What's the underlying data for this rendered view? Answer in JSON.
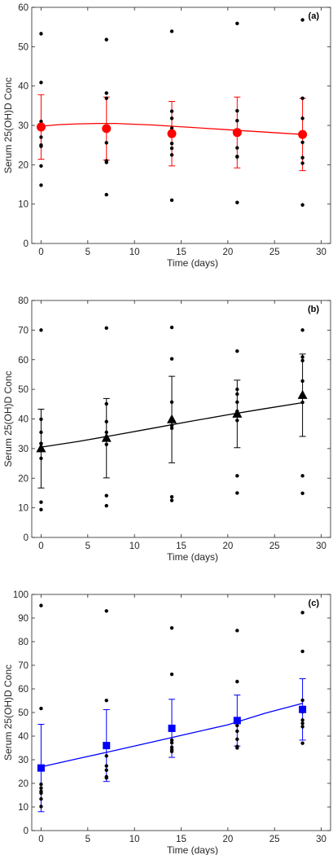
{
  "chart_data": [
    {
      "type": "scatter",
      "panel_label": "(a)",
      "xlabel": "Time (days)",
      "ylabel": "Serum 25(OH)D Conc",
      "xlim": [
        -1,
        31
      ],
      "ylim": [
        0,
        60
      ],
      "xticks": [
        0,
        5,
        10,
        15,
        20,
        25,
        30
      ],
      "yticks": [
        0,
        10,
        20,
        30,
        40,
        50,
        60
      ],
      "color": "#ff0000",
      "marker": "circle",
      "individual_points": {
        "x": [
          0,
          0,
          0,
          0,
          0,
          0,
          0,
          0,
          7,
          7,
          7,
          7,
          7,
          7,
          7,
          7,
          14,
          14,
          14,
          14,
          14,
          14,
          14,
          14,
          21,
          21,
          21,
          21,
          21,
          21,
          21,
          21,
          28,
          28,
          28,
          28,
          28,
          28,
          28,
          28
        ],
        "y": [
          53.3,
          40.9,
          31.0,
          27.0,
          25.0,
          24.7,
          19.7,
          14.8,
          51.8,
          38.2,
          36.9,
          29.5,
          25.6,
          21.0,
          20.6,
          12.4,
          53.9,
          33.6,
          31.8,
          29.3,
          25.4,
          24.2,
          22.5,
          11.0,
          55.9,
          33.7,
          31.2,
          27.9,
          24.3,
          22.1,
          22.0,
          10.4,
          56.8,
          36.9,
          31.8,
          27.4,
          25.7,
          21.8,
          20.4,
          9.8
        ]
      },
      "means": {
        "x": [
          0,
          7,
          14,
          21,
          28
        ],
        "y": [
          29.6,
          29.2,
          27.9,
          28.2,
          27.7
        ],
        "err": [
          8.2,
          8.0,
          8.2,
          9.0,
          9.2
        ]
      },
      "fit": {
        "x": [
          0,
          2,
          4,
          6,
          8,
          10,
          12,
          14,
          16,
          18,
          20,
          22,
          24,
          26,
          28
        ],
        "y": [
          29.8,
          30.2,
          30.4,
          30.5,
          30.5,
          30.3,
          30.1,
          29.8,
          29.5,
          29.2,
          28.9,
          28.6,
          28.3,
          28.0,
          27.7
        ]
      }
    },
    {
      "type": "scatter",
      "panel_label": "(b)",
      "xlabel": "Time (days)",
      "ylabel": "Serum 25(OH)D Conc",
      "xlim": [
        -1,
        31
      ],
      "ylim": [
        0,
        80
      ],
      "xticks": [
        0,
        5,
        10,
        15,
        20,
        25,
        30
      ],
      "yticks": [
        0,
        10,
        20,
        30,
        40,
        50,
        60,
        70,
        80
      ],
      "color": "#000000",
      "marker": "triangle",
      "individual_points": {
        "x": [
          0,
          0,
          0,
          0,
          0,
          0,
          0,
          0,
          7,
          7,
          7,
          7,
          7,
          7,
          7,
          7,
          14,
          14,
          14,
          14,
          14,
          14,
          14,
          14,
          21,
          21,
          21,
          21,
          21,
          21,
          21,
          21,
          28,
          28,
          28,
          28,
          28,
          28,
          28,
          28
        ],
        "y": [
          70.0,
          39.9,
          35.5,
          31.7,
          31.7,
          26.7,
          11.9,
          9.4,
          70.7,
          45.1,
          39.1,
          35.5,
          32.9,
          31.4,
          14.1,
          10.7,
          70.9,
          60.3,
          45.7,
          40.0,
          37.8,
          36.9,
          13.7,
          12.5,
          62.9,
          50.0,
          48.4,
          45.7,
          42.6,
          39.5,
          20.8,
          15.0,
          70.0,
          60.9,
          59.7,
          52.8,
          48.0,
          45.6,
          20.8,
          14.9
        ]
      },
      "means": {
        "x": [
          0,
          7,
          14,
          21,
          28
        ],
        "y": [
          30.0,
          33.5,
          39.8,
          41.7,
          48.0
        ],
        "err": [
          13.3,
          13.4,
          14.6,
          11.4,
          13.9
        ]
      },
      "fit": {
        "x": [
          0,
          4,
          8,
          12,
          16,
          20,
          24,
          28
        ],
        "y": [
          30.5,
          32.4,
          34.6,
          36.9,
          39.2,
          41.4,
          43.5,
          45.5
        ]
      }
    },
    {
      "type": "scatter",
      "panel_label": "(c)",
      "xlabel": "Time (days)",
      "ylabel": "Serum 25(OH)D Conc",
      "xlim": [
        -1,
        31
      ],
      "ylim": [
        0,
        100
      ],
      "xticks": [
        0,
        5,
        10,
        15,
        20,
        25,
        30
      ],
      "yticks": [
        0,
        10,
        20,
        30,
        40,
        50,
        60,
        70,
        80,
        90,
        100
      ],
      "color": "#0000ff",
      "marker": "square",
      "individual_points": {
        "x": [
          0,
          0,
          0,
          0,
          0,
          0,
          0,
          0,
          7,
          7,
          7,
          7,
          7,
          7,
          7,
          7,
          14,
          14,
          14,
          14,
          14,
          14,
          14,
          14,
          21,
          21,
          21,
          21,
          21,
          21,
          21,
          21,
          28,
          28,
          28,
          28,
          28,
          28,
          28,
          28
        ],
        "y": [
          95.3,
          51.7,
          19.6,
          18.0,
          16.6,
          15.9,
          13.4,
          10.2,
          93.0,
          55.1,
          35.4,
          31.6,
          27.4,
          25.6,
          22.8,
          22.3,
          85.8,
          66.2,
          42.8,
          38.3,
          37.2,
          35.3,
          34.3,
          33.5,
          84.7,
          63.1,
          46.8,
          44.5,
          42.1,
          38.7,
          35.6,
          35.0,
          92.3,
          75.9,
          55.2,
          50.3,
          46.8,
          45.4,
          44.0,
          37.0
        ]
      },
      "means": {
        "x": [
          0,
          7,
          14,
          21,
          28
        ],
        "y": [
          26.5,
          36.0,
          43.3,
          46.6,
          51.3
        ],
        "err": [
          18.5,
          15.2,
          12.3,
          10.8,
          13.0
        ]
      },
      "fit": {
        "x": [
          0,
          4,
          8,
          12,
          16,
          20,
          24,
          28
        ],
        "y": [
          27.0,
          30.5,
          34.0,
          37.6,
          41.2,
          44.8,
          49.7,
          53.9
        ]
      }
    }
  ]
}
